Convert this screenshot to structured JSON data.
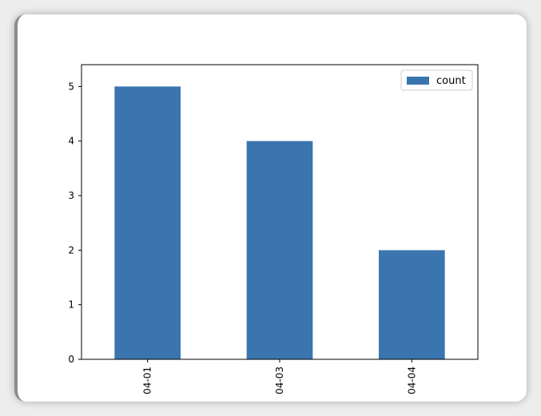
{
  "colors": {
    "bar": "#3a75b0",
    "frame_background": "#ffffff",
    "page_background": "#ededed"
  },
  "chart_data": {
    "type": "bar",
    "categories": [
      "04-01",
      "04-03",
      "04-04"
    ],
    "series": [
      {
        "name": "count",
        "values": [
          5,
          4,
          2
        ]
      }
    ],
    "ylim": [
      0,
      5.4
    ],
    "yticks": [
      0,
      1,
      2,
      3,
      4,
      5
    ],
    "xtick_rotation": "vertical",
    "legend": {
      "position": "top-right"
    },
    "grid": false
  }
}
